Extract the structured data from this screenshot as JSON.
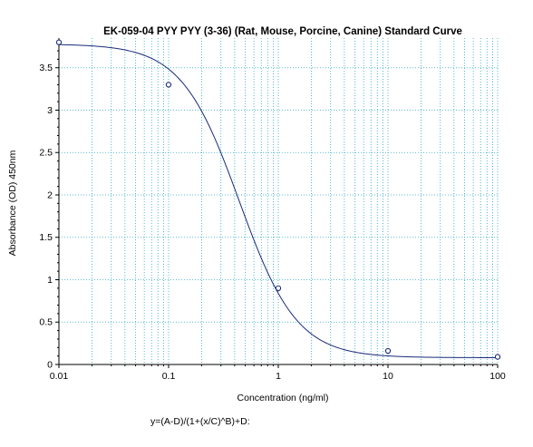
{
  "chart_data": {
    "type": "scatter",
    "title": "EK-059-04 PYY PYY (3-36) (Rat, Mouse, Porcine, Canine) Standard Curve",
    "xlabel": "Concentration (ng/ml)",
    "ylabel": "Absorbance (OD) 450nm",
    "equation": "y=(A-D)/(1+(x/C)^B)+D:",
    "x_scale": "log",
    "xlim": [
      0.01,
      100
    ],
    "ylim": [
      0,
      3.85
    ],
    "x_ticks": [
      0.01,
      0.1,
      1,
      10,
      100
    ],
    "x_tick_labels": [
      "0.01",
      "0.1",
      "1",
      "10",
      "100"
    ],
    "y_ticks": [
      0,
      0.5,
      1,
      1.5,
      2,
      2.5,
      3,
      3.5
    ],
    "y_tick_labels": [
      "0",
      "0.5",
      "1",
      "1.5",
      "2",
      "2.5",
      "3",
      "3.5"
    ],
    "grid": true,
    "grid_color": "#2aa8c8",
    "line_color": "#1a2a7a",
    "marker_color": "#1a2a7a",
    "points": [
      {
        "x": 0.01,
        "y": 3.8
      },
      {
        "x": 0.1,
        "y": 3.3
      },
      {
        "x": 1,
        "y": 0.9
      },
      {
        "x": 10,
        "y": 0.16
      },
      {
        "x": 100,
        "y": 0.09
      }
    ],
    "fit": {
      "model": "4PL",
      "A": 3.78,
      "B": 1.65,
      "C": 0.44,
      "D": 0.08
    }
  }
}
